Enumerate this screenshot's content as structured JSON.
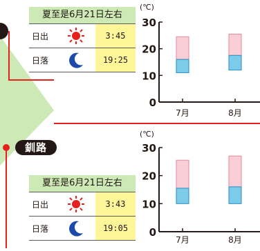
{
  "colors": {
    "accent_red": "#e5211d",
    "band_green": "#cde9b6",
    "time_yellow": "#fff69a",
    "bar_high": "#f9ced6",
    "bar_low": "#7ccbe9"
  },
  "cities": [
    {
      "name": "",
      "sun": {
        "header": "夏至是6月21日左右",
        "sunrise_label": "日出",
        "sunrise_time": "3:45",
        "sunset_label": "日落",
        "sunset_time": "19:25",
        "sunrise_icon": "sun-icon",
        "sunset_icon": "moon-icon"
      }
    },
    {
      "name": "釧路",
      "sun": {
        "header": "夏至是6月21日左右",
        "sunrise_label": "日出",
        "sunrise_time": "3:43",
        "sunset_label": "日落",
        "sunset_time": "19:05",
        "sunrise_icon": "sun-icon",
        "sunset_icon": "moon-icon"
      }
    }
  ],
  "chart_data": [
    {
      "type": "bar",
      "unit": "(℃)",
      "categories": [
        "7月",
        "8月"
      ],
      "ylim": [
        0,
        30
      ],
      "yticks": [
        0,
        10,
        20,
        30
      ],
      "series": [
        {
          "values": [
            11,
            12
          ]
        },
        {
          "values": [
            24.5,
            25.5
          ]
        }
      ],
      "split": [
        16,
        17.5
      ]
    },
    {
      "type": "bar",
      "unit": "(℃)",
      "categories": [
        "7月",
        "8月"
      ],
      "ylim": [
        0,
        30
      ],
      "yticks": [
        0,
        10,
        20,
        30
      ],
      "series": [
        {
          "values": [
            10,
            10
          ]
        },
        {
          "values": [
            25.5,
            27
          ]
        }
      ],
      "split": [
        15.5,
        16
      ]
    }
  ]
}
